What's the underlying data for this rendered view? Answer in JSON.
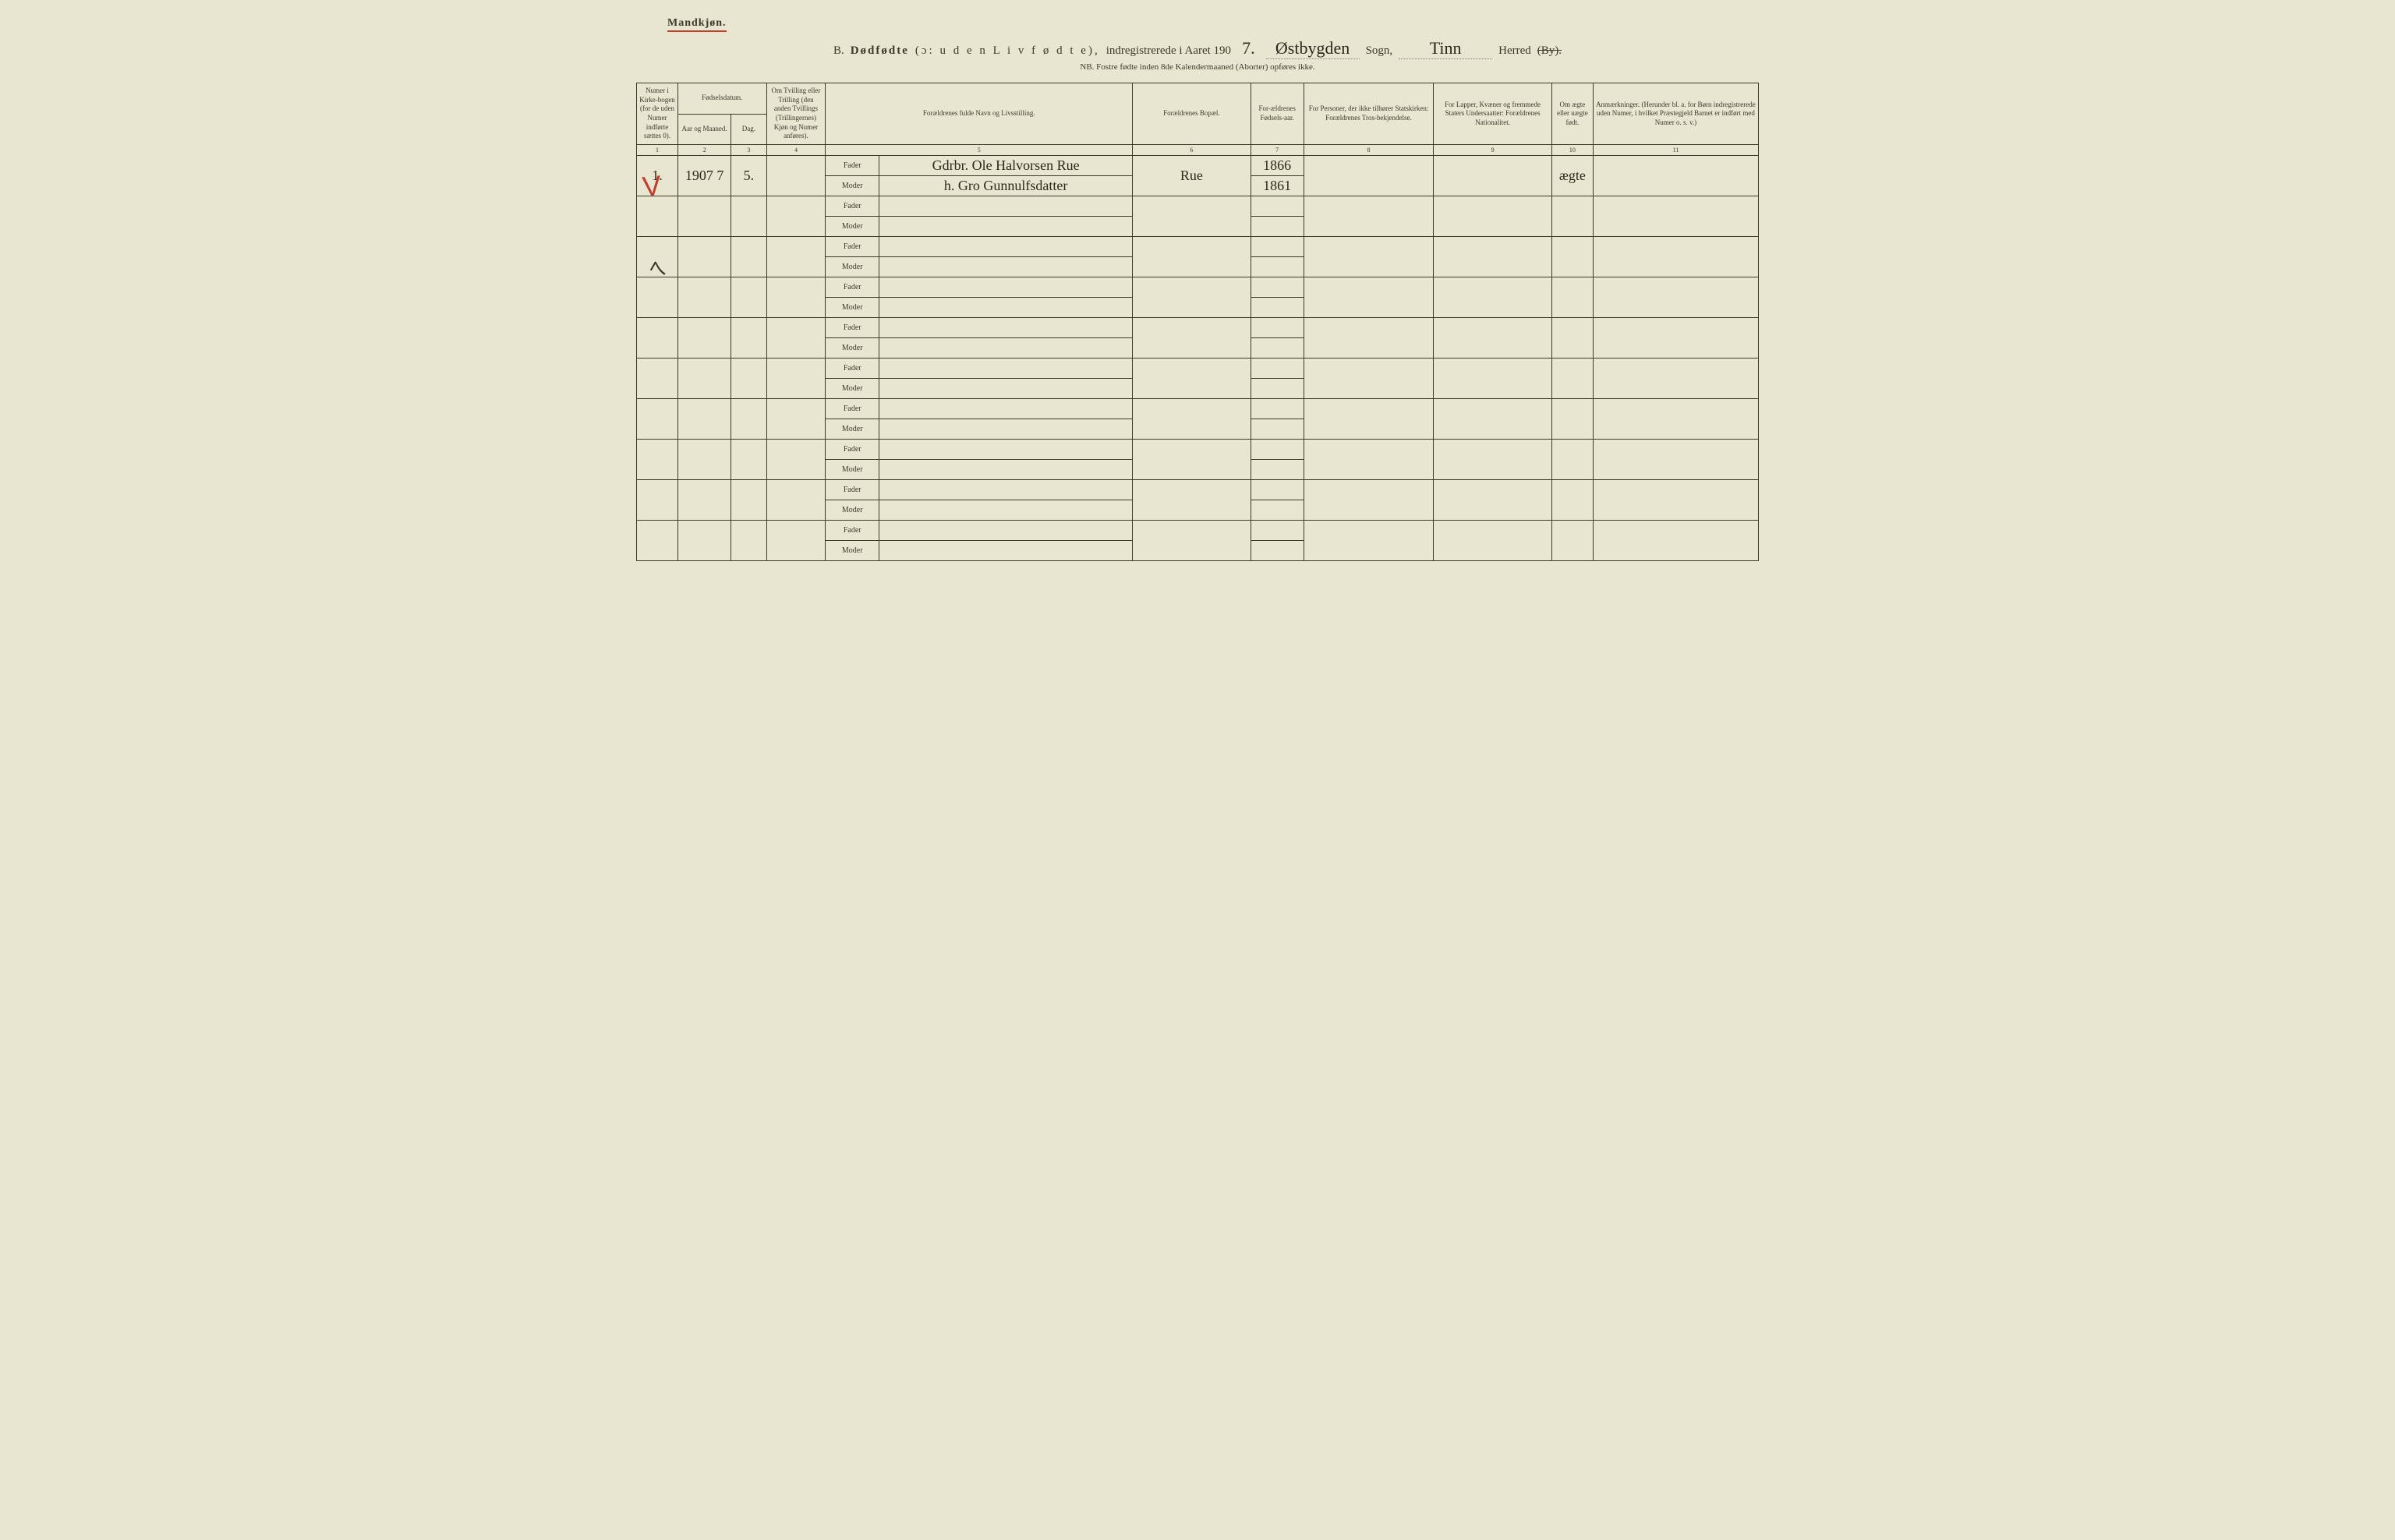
{
  "header": {
    "gender_label": "Mandkjøn.",
    "title_prefix": "B.",
    "title_bold": "Dødfødte",
    "title_paren": "(ɔ: u d e n  L i v  f ø d t e),",
    "title_mid": "indregistrerede i Aaret 190",
    "year_suffix": "7.",
    "parish": "Østbygden",
    "sogn_label": "Sogn,",
    "district": "Tinn",
    "herred_label": "Herred",
    "by_struck": "(By).",
    "subtitle": "NB.  Fostre fødte inden 8de Kalendermaaned (Aborter) opføres ikke."
  },
  "columns": {
    "c1": "Numer i Kirke-bogen (for de uden Numer indførte sættes 0).",
    "c2_top": "Fødselsdatum.",
    "c2a": "Aar og Maaned.",
    "c2b": "Dag.",
    "c4": "Om Tvilling eller Trilling (den anden Tvillings (Trillingernes) Kjøn og Numer anføres).",
    "c5": "Forældrenes fulde Navn og Livsstilling.",
    "c6": "Forældrenes Bopæl.",
    "c7": "For-ældrenes Fødsels-aar.",
    "c8": "For Personer, der ikke tilhører Statskirken: Forældrenes Tros-bekjendelse.",
    "c9": "For Lapper, Kvæner og fremmede Staters Undersaatter: Forældrenes Nationalitet.",
    "c10": "Om ægte eller uægte født.",
    "c11": "Anmærkninger. (Herunder bl. a. for Børn indregistrerede uden Numer, i hvilket Præstegjeld Barnet er indført med Numer o. s. v.)"
  },
  "colnums": [
    "1",
    "2",
    "3",
    "4",
    "5",
    "6",
    "7",
    "8",
    "9",
    "10",
    "11"
  ],
  "parent_labels": {
    "father": "Fader",
    "mother": "Moder"
  },
  "entries": [
    {
      "num": "1.",
      "year_month": "1907 7",
      "day": "5.",
      "twin": "",
      "father_name": "Gdrbr. Ole Halvorsen Rue",
      "mother_name": "h. Gro Gunnulfsdatter",
      "residence": "Rue",
      "father_birth": "1866",
      "mother_birth": "1861",
      "faith": "",
      "nationality": "",
      "legit": "ægte",
      "remarks": ""
    }
  ],
  "blank_row_count": 9,
  "marks": {
    "check": "V",
    "tick": "7"
  },
  "style": {
    "bg": "#e8e5d0",
    "ink": "#3a3a2a",
    "red": "#c04030",
    "header_fontsize": 15,
    "cell_fontsize": 10,
    "handwritten_fontsize": 18
  }
}
